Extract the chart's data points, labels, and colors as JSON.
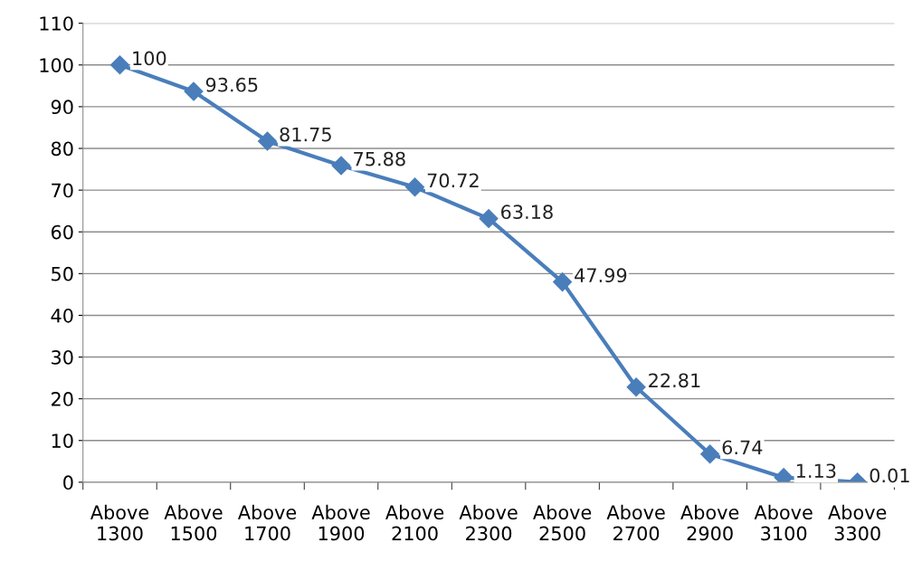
{
  "chart_data": {
    "type": "line",
    "categories": [
      "Above 1300",
      "Above 1500",
      "Above 1700",
      "Above 1900",
      "Above 2100",
      "Above 2300",
      "Above 2500",
      "Above 2700",
      "Above 2900",
      "Above 3100",
      "Above 3300"
    ],
    "series": [
      {
        "color": "#4a7ebb",
        "values": [
          100,
          93.65,
          81.75,
          75.88,
          70.72,
          63.18,
          47.99,
          22.81,
          6.74,
          1.13,
          0.01
        ]
      }
    ],
    "ylim": [
      0,
      110
    ],
    "yticks": [
      0,
      10,
      20,
      30,
      40,
      50,
      60,
      70,
      80,
      90,
      100,
      110
    ],
    "grid": "y",
    "marker": "diamond",
    "line_style": "solid",
    "data_labels": true
  }
}
